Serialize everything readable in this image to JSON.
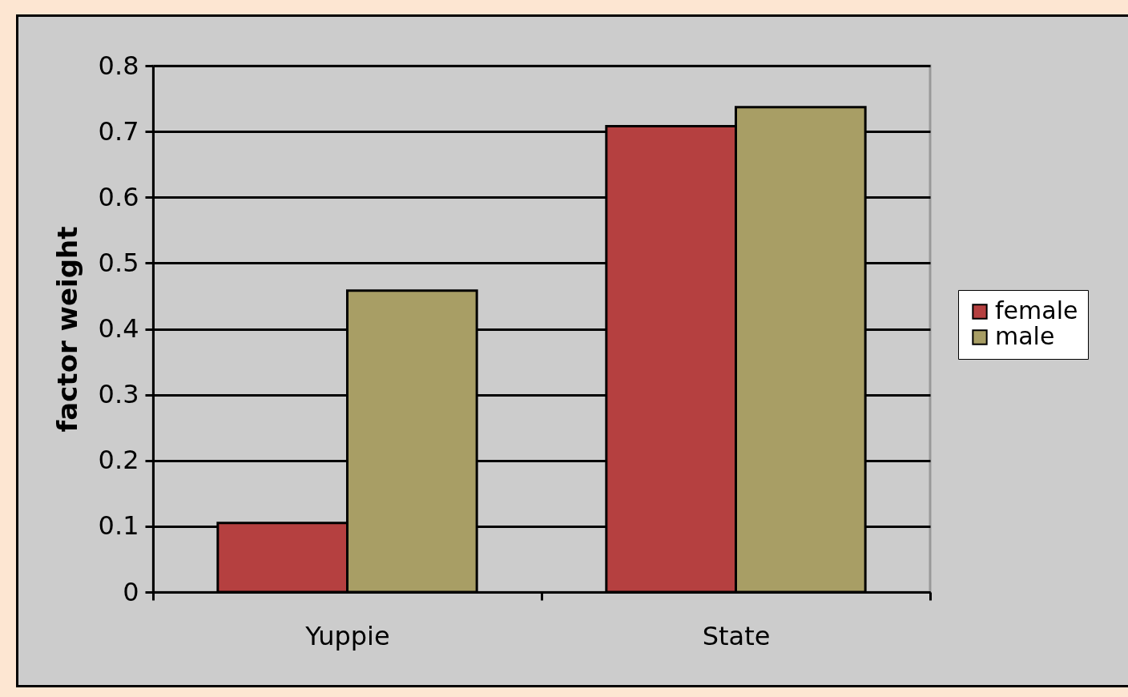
{
  "chart_data": {
    "type": "bar",
    "ylabel": "factor weight",
    "categories": [
      "Yuppie",
      "State"
    ],
    "series": [
      {
        "name": "female",
        "color": "#b54040",
        "values": [
          0.105,
          0.708
        ]
      },
      {
        "name": "male",
        "color": "#a89e65",
        "values": [
          0.458,
          0.737
        ]
      }
    ],
    "ylim": [
      0,
      0.8
    ],
    "yticks": [
      0,
      0.1,
      0.2,
      0.3,
      0.4,
      0.5,
      0.6,
      0.7,
      0.8
    ],
    "grid": "y",
    "legend": "right"
  }
}
